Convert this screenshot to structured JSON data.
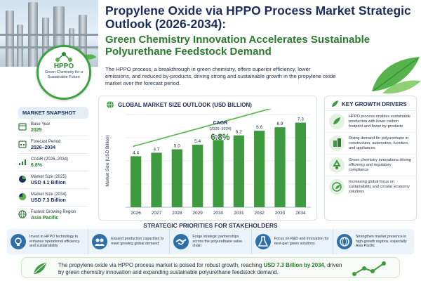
{
  "header": {
    "title": "Propylene Oxide via HPPO Process Market Strategic Outlook (2026-2034):",
    "subtitle": "Green Chemistry Innovation Accelerates Sustainable Polyurethane Feedstock Demand",
    "intro": "The HPPO process, a breakthrough in green chemistry, offers superior efficiency, lower emissions, and reduced by-products, driving strong and sustainable growth in the propylene oxide market over the forecast period."
  },
  "badge": {
    "title": "HPPO",
    "subtitle": "Green Chemistry for a Sustainable Future"
  },
  "snapshot": {
    "heading": "MARKET SNAPSHOT",
    "items": [
      {
        "label": "Base Year",
        "value": "2025",
        "icon": "calendar-icon"
      },
      {
        "label": "Forecast Period",
        "value": "2026–2034",
        "icon": "calendar-range-icon"
      },
      {
        "label": "CAGR (2026–2034)",
        "value": "6.8%",
        "icon": "growth-chart-icon"
      },
      {
        "label": "Market Size (2025)",
        "value": "USD 4.1 Billion",
        "icon": "pie-chart-icon"
      },
      {
        "label": "Market Size (2034)",
        "value": "USD 7.3 Billion",
        "icon": "pie-chart-icon"
      },
      {
        "label": "Fastest Growing Region",
        "value": "Asia Pacific",
        "icon": "globe-icon"
      }
    ]
  },
  "chart_data": {
    "type": "bar",
    "title": "GLOBAL MARKET SIZE OUTLOOK (USD BILLION)",
    "ylabel": "Market Size (USD Billion)",
    "xlabel": "",
    "categories": [
      "2026",
      "2027",
      "2028",
      "2029",
      "2030",
      "2031",
      "2032",
      "2033",
      "2034"
    ],
    "values": [
      4.4,
      4.7,
      5.0,
      5.4,
      5.8,
      6.2,
      6.6,
      6.9,
      7.3
    ],
    "value_labels": [
      "4.4",
      "4.7",
      "5.0",
      "5.4",
      "5.8",
      "6.2",
      "6.6",
      "6.9",
      "7.3"
    ],
    "ylim": [
      0,
      8
    ],
    "grid": true,
    "legend": "none",
    "annotation": {
      "label": "CAGR",
      "period": "(2026–2034)",
      "value": "6.8%"
    },
    "bar_color": "#3d9a3f"
  },
  "drivers": {
    "heading": "KEY GROWTH DRIVERS",
    "items": [
      {
        "text": "HPPO process enables sustainable production with lower carbon footprint and fewer by-products",
        "icon": "leaf-cycle-icon"
      },
      {
        "text": "Rising demand for polyurethane in construction, automotive, furniture, and appliances",
        "icon": "building-icon"
      },
      {
        "text": "Green chemistry innovations driving efficiency and regulatory compliance",
        "icon": "recycle-icon"
      },
      {
        "text": "Increasing global focus on sustainability and circular economy solutions",
        "icon": "globe-leaf-icon"
      }
    ]
  },
  "priorities": {
    "heading": "STRATEGIC PRIORITIES FOR STAKEHOLDERS",
    "items": [
      {
        "text": "Invest in HPPO technology to enhance operational efficiency and sustainability",
        "icon": "gear-bulb-icon"
      },
      {
        "text": "Expand production capacities to meet growing global demand",
        "icon": "people-icon"
      },
      {
        "text": "Forge strategic partnerships across the polyurethane value chain",
        "icon": "handshake-icon"
      },
      {
        "text": "Focus on R&D and innovation for next-gen green solutions",
        "icon": "flask-icon"
      },
      {
        "text": "Strengthen market presence in high-growth regions, especially Asia Pacific",
        "icon": "globe-icon"
      }
    ]
  },
  "footer": {
    "text_before": "The propylene oxide via HPPO process market is poised for robust growth, reaching ",
    "highlight": "USD 7.3 Billion by 2034",
    "text_after": ", driven by green chemistry innovation and expanding sustainable polyurethane feedstock demand."
  },
  "colors": {
    "navy": "#1b2d5c",
    "green": "#3d9a3f",
    "light_green": "#56b34b",
    "blue": "#2f6fa8"
  }
}
